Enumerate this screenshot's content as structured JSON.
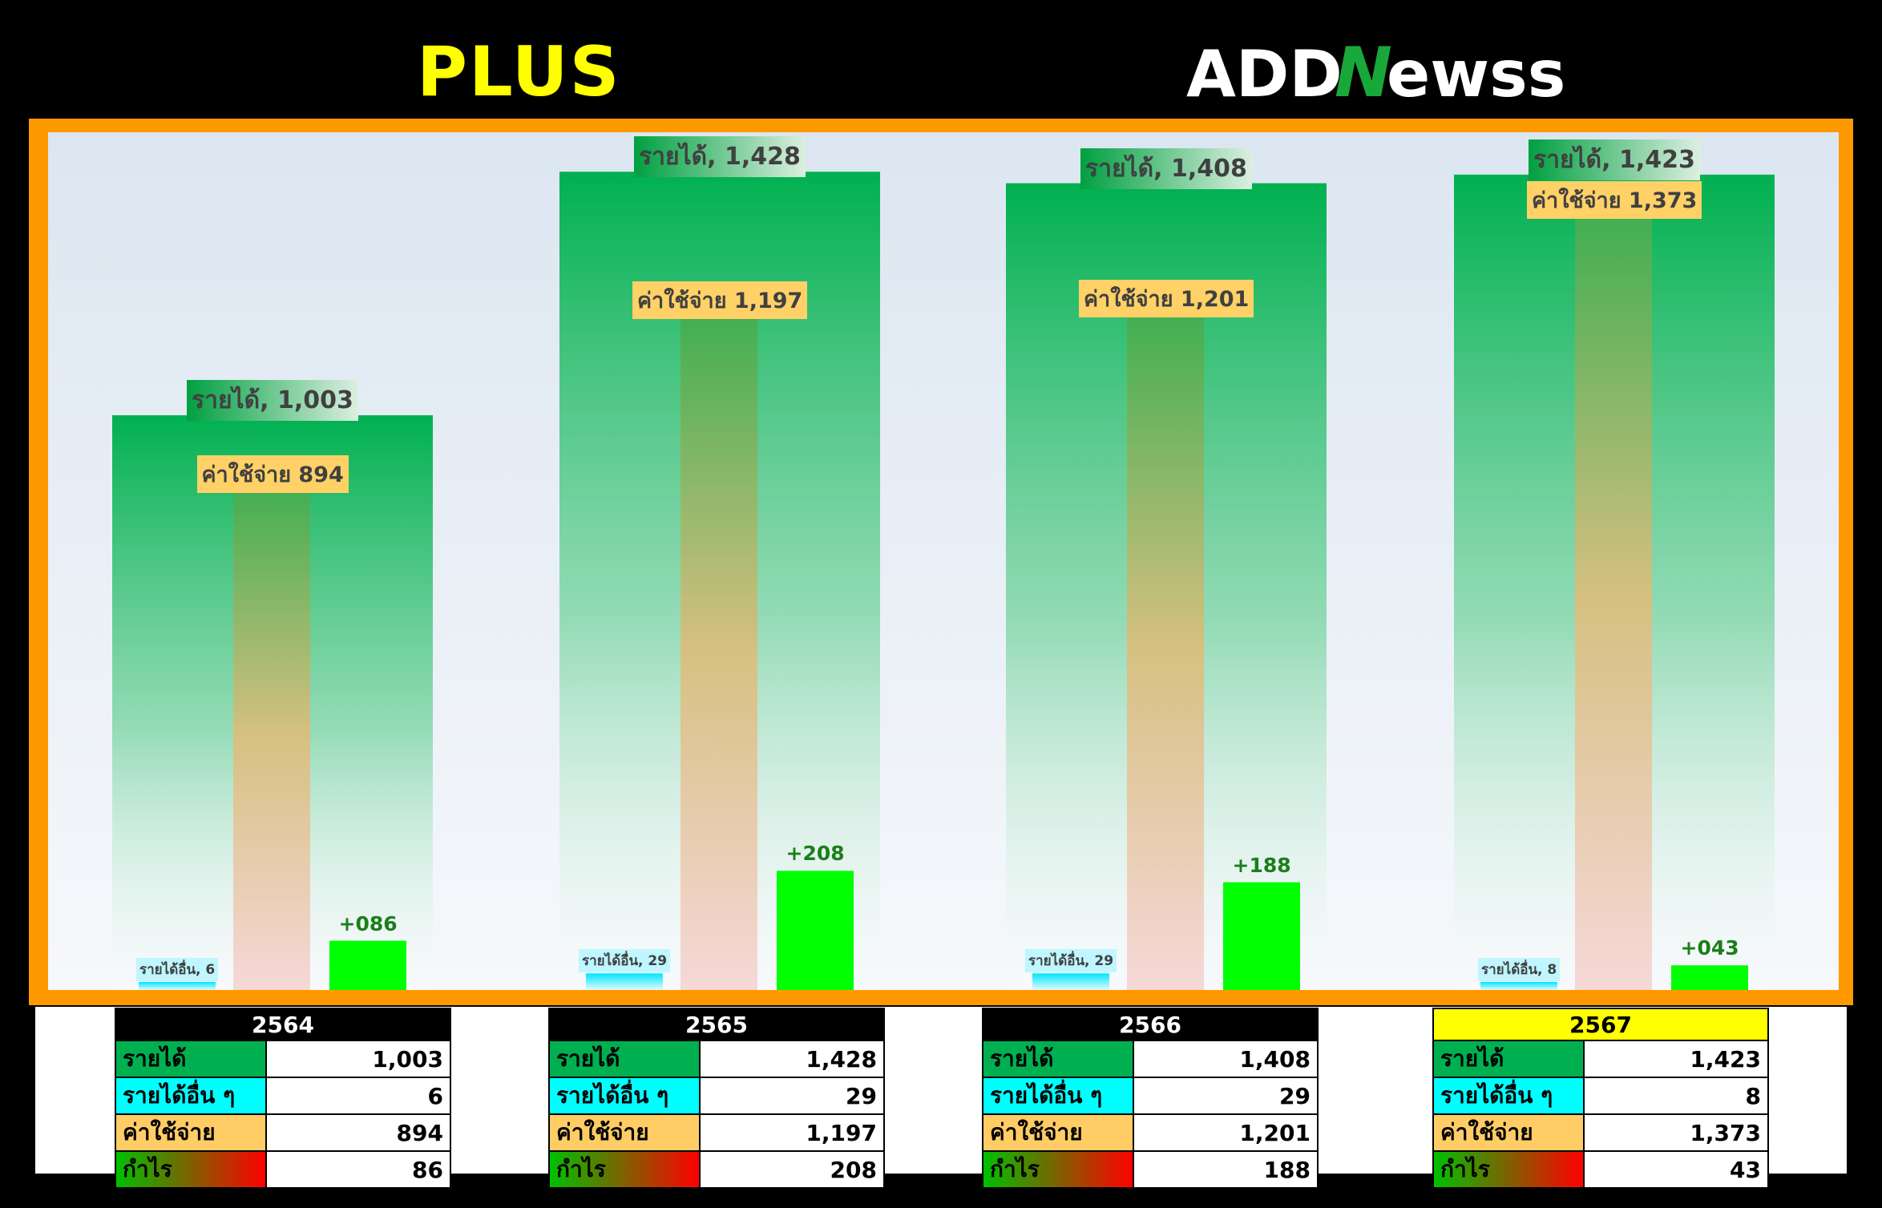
{
  "header": {
    "left_brand": "PLUS",
    "right_brand_part1": "ADD",
    "right_brand_mark": "N",
    "right_brand_part2": "ewss"
  },
  "colors": {
    "revenue": "#00b050",
    "other_income": "#00ffff",
    "expense": "#ffc000",
    "profit": "#00ff00",
    "frame": "#ff9900",
    "highlight_year": "#ffff00"
  },
  "chart_data": {
    "type": "bar",
    "categories": [
      "2564",
      "2565",
      "2566",
      "2567"
    ],
    "series": [
      {
        "name": "รายได้",
        "values": [
          1003,
          1428,
          1408,
          1423
        ]
      },
      {
        "name": "รายได้อื่น",
        "values": [
          6,
          29,
          29,
          8
        ]
      },
      {
        "name": "ค่าใช้จ่าย",
        "values": [
          894,
          1197,
          1201,
          1373
        ]
      },
      {
        "name": "กำไร",
        "values": [
          86,
          208,
          188,
          43
        ]
      }
    ],
    "labels": {
      "revenue": [
        "รายได้, 1,003",
        "รายได้, 1,428",
        "รายได้, 1,408",
        "รายได้, 1,423"
      ],
      "other": [
        "รายได้อื่น, 6",
        "รายได้อื่น, 29",
        "รายได้อื่น, 29",
        "รายได้อื่น, 8"
      ],
      "expense": [
        "ค่าใช้จ่าย 894",
        "ค่าใช้จ่าย 1,197",
        "ค่าใช้จ่าย 1,201",
        "ค่าใช้จ่าย 1,373"
      ],
      "profit": [
        "+086",
        "+208",
        "+188",
        "+043"
      ]
    },
    "ylim": [
      0,
      1600
    ],
    "grid": false,
    "legend": "none"
  },
  "tables": [
    {
      "year": "2564",
      "rows": [
        {
          "label": "รายได้",
          "value": "1,003"
        },
        {
          "label": "รายได้อื่น ๆ",
          "value": "6"
        },
        {
          "label": "ค่าใช้จ่าย",
          "value": "894"
        },
        {
          "label": "กำไร",
          "value": "86"
        }
      ]
    },
    {
      "year": "2565",
      "rows": [
        {
          "label": "รายได้",
          "value": "1,428"
        },
        {
          "label": "รายได้อื่น ๆ",
          "value": "29"
        },
        {
          "label": "ค่าใช้จ่าย",
          "value": "1,197"
        },
        {
          "label": "กำไร",
          "value": "208"
        }
      ]
    },
    {
      "year": "2566",
      "rows": [
        {
          "label": "รายได้",
          "value": "1,408"
        },
        {
          "label": "รายได้อื่น ๆ",
          "value": "29"
        },
        {
          "label": "ค่าใช้จ่าย",
          "value": "1,201"
        },
        {
          "label": "กำไร",
          "value": "188"
        }
      ]
    },
    {
      "year": "2567",
      "rows": [
        {
          "label": "รายได้",
          "value": "1,423"
        },
        {
          "label": "รายได้อื่น ๆ",
          "value": "8"
        },
        {
          "label": "ค่าใช้จ่าย",
          "value": "1,373"
        },
        {
          "label": "กำไร",
          "value": "43"
        }
      ]
    }
  ]
}
